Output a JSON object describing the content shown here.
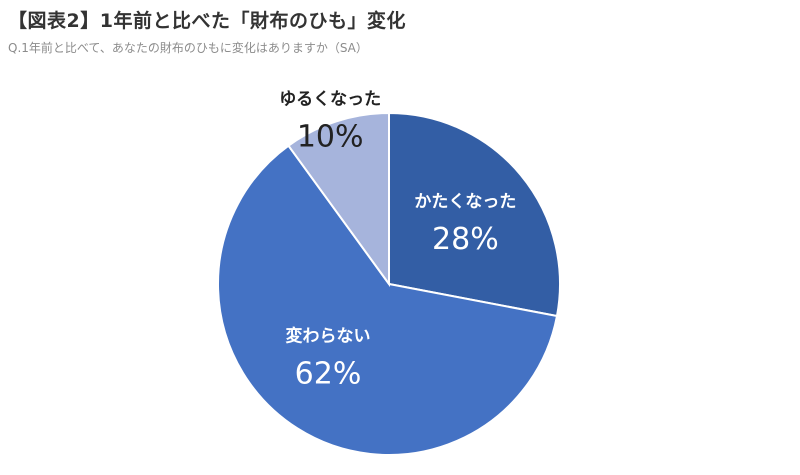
{
  "header": {
    "title": "【図表2】1年前と比べた「財布のひも」変化",
    "subtitle": "Q.1年前と比べて、あなたの財布のひもに変化はありますか（SA）"
  },
  "chart_data": {
    "type": "pie",
    "title": "",
    "slices": [
      {
        "label": "かたくなった",
        "value": 28,
        "value_label": "28%",
        "color": "#335ea5",
        "label_color": "#ffffff"
      },
      {
        "label": "変わらない",
        "value": 62,
        "value_label": "62%",
        "color": "#4472c4",
        "label_color": "#ffffff"
      },
      {
        "label": "ゆるくなった",
        "value": 10,
        "value_label": "10%",
        "color": "#a6b4dc",
        "label_color": "#222222"
      }
    ],
    "start": "12 o'clock",
    "direction": "clockwise",
    "legend": "none"
  }
}
